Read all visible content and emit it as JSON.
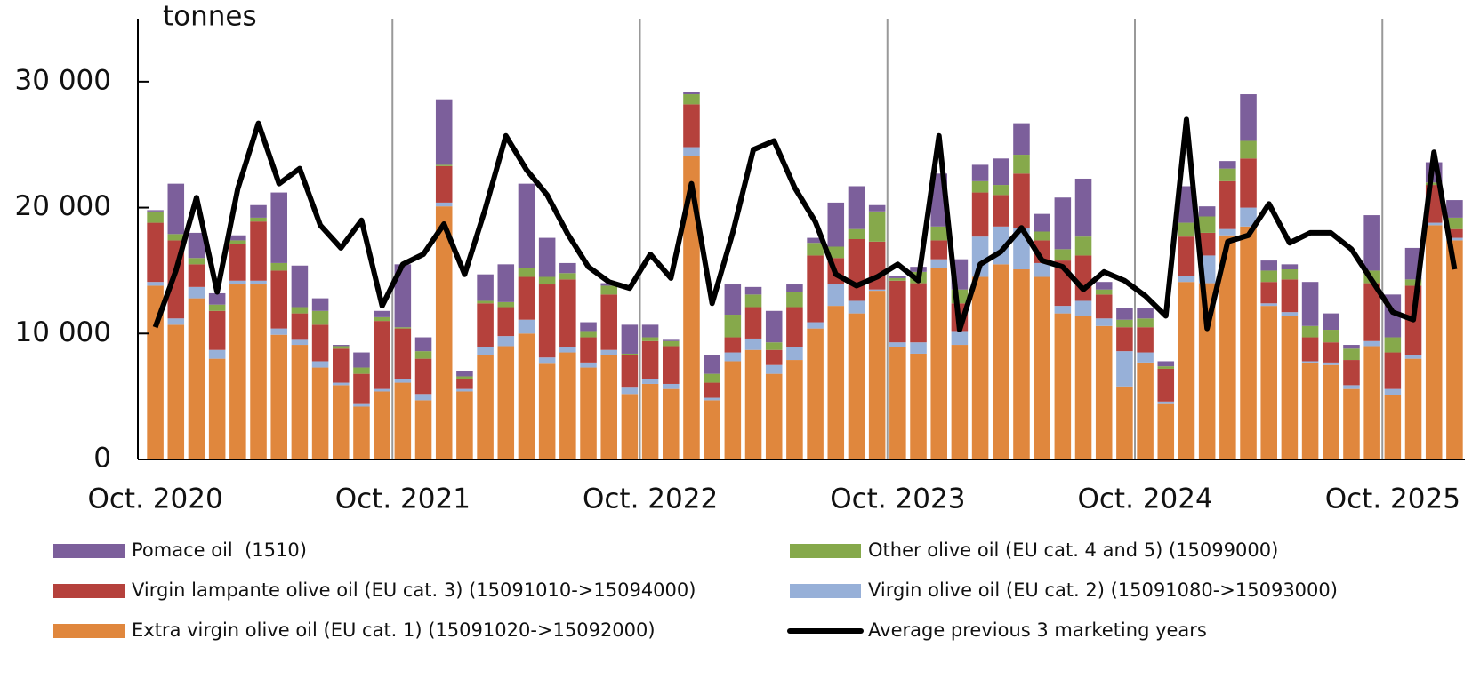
{
  "chart_data": {
    "type": "bar",
    "stacked": true,
    "y_label": "tonnes",
    "categories": [
      "Oct. 2020",
      null,
      null,
      null,
      null,
      null,
      null,
      null,
      null,
      null,
      null,
      null,
      "Oct. 2021",
      null,
      null,
      null,
      null,
      null,
      null,
      null,
      null,
      null,
      null,
      null,
      "Oct. 2022",
      null,
      null,
      null,
      null,
      null,
      null,
      null,
      null,
      null,
      null,
      null,
      "Oct. 2023",
      null,
      null,
      null,
      null,
      null,
      null,
      null,
      null,
      null,
      null,
      null,
      "Oct. 2024",
      null,
      null,
      null,
      null,
      null,
      null,
      null,
      null,
      null,
      null,
      null,
      "Oct. 2025",
      null,
      null,
      null
    ],
    "ylim": [
      0,
      35000
    ],
    "yticks": [
      0,
      {
        "value": 10000,
        "label": "10 000"
      },
      {
        "value": 20000,
        "label": "20 000"
      },
      {
        "value": 30000,
        "label": "30 000"
      }
    ],
    "series": [
      {
        "name": "Extra virgin olive oil (EU cat. 1) (15091020->15092000)",
        "color": "#e0873d",
        "values": [
          13800,
          10700,
          12800,
          8000,
          13900,
          13900,
          9900,
          9100,
          7300,
          5900,
          4200,
          5400,
          6100,
          4700,
          20100,
          5400,
          8300,
          9000,
          10000,
          7600,
          8500,
          7300,
          8300,
          5200,
          6000,
          5600,
          24100,
          4700,
          7800,
          8700,
          6800,
          7900,
          10400,
          12200,
          11600,
          13400,
          8900,
          8400,
          15200,
          9100,
          14500,
          15500,
          15100,
          14500,
          11600,
          11400,
          10600,
          5800,
          7700,
          4400,
          14100,
          14000,
          17800,
          18500,
          12200,
          11400,
          7700,
          7500,
          5600,
          9000,
          5100,
          8000,
          18600,
          17400
        ]
      },
      {
        "name": "Virgin olive oil (EU cat. 2) (15091080->15093000)",
        "color": "#97b0d8",
        "values": [
          300,
          500,
          900,
          700,
          300,
          300,
          500,
          400,
          500,
          200,
          200,
          200,
          300,
          500,
          300,
          200,
          600,
          800,
          1100,
          500,
          400,
          400,
          400,
          500,
          400,
          400,
          700,
          200,
          700,
          900,
          700,
          1000,
          500,
          1700,
          1000,
          100,
          400,
          900,
          700,
          1100,
          3200,
          3000,
          3300,
          1100,
          600,
          1200,
          600,
          2800,
          800,
          200,
          500,
          2200,
          500,
          1500,
          200,
          300,
          100,
          200,
          300,
          400,
          500,
          300,
          200,
          200
        ]
      },
      {
        "name": "Virgin lampante olive oil (EU cat. 3) (15091010->15094000)",
        "color": "#b5413c",
        "values": [
          4700,
          6200,
          1800,
          3100,
          2900,
          4700,
          4600,
          2100,
          2900,
          2700,
          2400,
          5400,
          4000,
          2800,
          2900,
          800,
          3500,
          2300,
          3400,
          5800,
          5400,
          2000,
          4400,
          2600,
          3000,
          3000,
          3400,
          1200,
          1200,
          2500,
          1200,
          3200,
          5300,
          2100,
          4900,
          3800,
          4900,
          4700,
          1500,
          2200,
          3500,
          2500,
          4300,
          1800,
          3600,
          3600,
          1900,
          1900,
          2000,
          2600,
          3100,
          1800,
          3800,
          3900,
          1700,
          2600,
          1900,
          1600,
          2000,
          4600,
          2900,
          5500,
          3000,
          700
        ]
      },
      {
        "name": "Other olive oil (EU cat. 4 and 5) (15099000)",
        "color": "#86a94b",
        "values": [
          900,
          500,
          500,
          500,
          300,
          300,
          600,
          500,
          1100,
          200,
          500,
          300,
          100,
          600,
          100,
          200,
          200,
          400,
          700,
          600,
          500,
          500,
          700,
          100,
          300,
          400,
          800,
          700,
          1800,
          1000,
          600,
          1200,
          1000,
          900,
          800,
          2400,
          200,
          900,
          1100,
          1100,
          900,
          800,
          1500,
          700,
          900,
          1500,
          400,
          600,
          700,
          200,
          1100,
          1300,
          1000,
          1400,
          900,
          800,
          900,
          1000,
          900,
          1000,
          1200,
          500,
          200,
          900
        ]
      },
      {
        "name": "Pomace oil  (1510)",
        "color": "#7c5f9b",
        "values": [
          100,
          4000,
          2000,
          900,
          400,
          1000,
          5600,
          3300,
          1000,
          100,
          1200,
          500,
          5000,
          1100,
          5200,
          400,
          2100,
          3000,
          6700,
          3100,
          800,
          700,
          200,
          2300,
          1000,
          100,
          200,
          1500,
          2400,
          600,
          2500,
          600,
          400,
          3500,
          3400,
          500,
          200,
          400,
          4200,
          2400,
          1300,
          2100,
          2500,
          1400,
          4100,
          4600,
          600,
          900,
          800,
          400,
          2900,
          800,
          600,
          3700,
          800,
          400,
          3500,
          1300,
          300,
          4400,
          3400,
          2500,
          1600,
          1400
        ]
      },
      {
        "name": "Average previous 3 marketing years",
        "color": "#000000",
        "type": "line",
        "values": [
          10500,
          15000,
          20800,
          13300,
          21500,
          26700,
          21900,
          23100,
          18600,
          16800,
          19000,
          12200,
          15500,
          16300,
          18700,
          14700,
          19900,
          25700,
          23000,
          21000,
          17900,
          15300,
          14100,
          13600,
          16300,
          14400,
          21900,
          12400,
          18000,
          24600,
          25300,
          21600,
          18900,
          14700,
          13800,
          14500,
          15500,
          14200,
          25700,
          10300,
          15500,
          16500,
          18400,
          15800,
          15300,
          13500,
          14900,
          14200,
          13000,
          11400,
          27000,
          10400,
          17300,
          17800,
          20300,
          17200,
          18000,
          18000,
          16700,
          14200,
          11700,
          11100,
          24400,
          15100
        ]
      }
    ]
  }
}
